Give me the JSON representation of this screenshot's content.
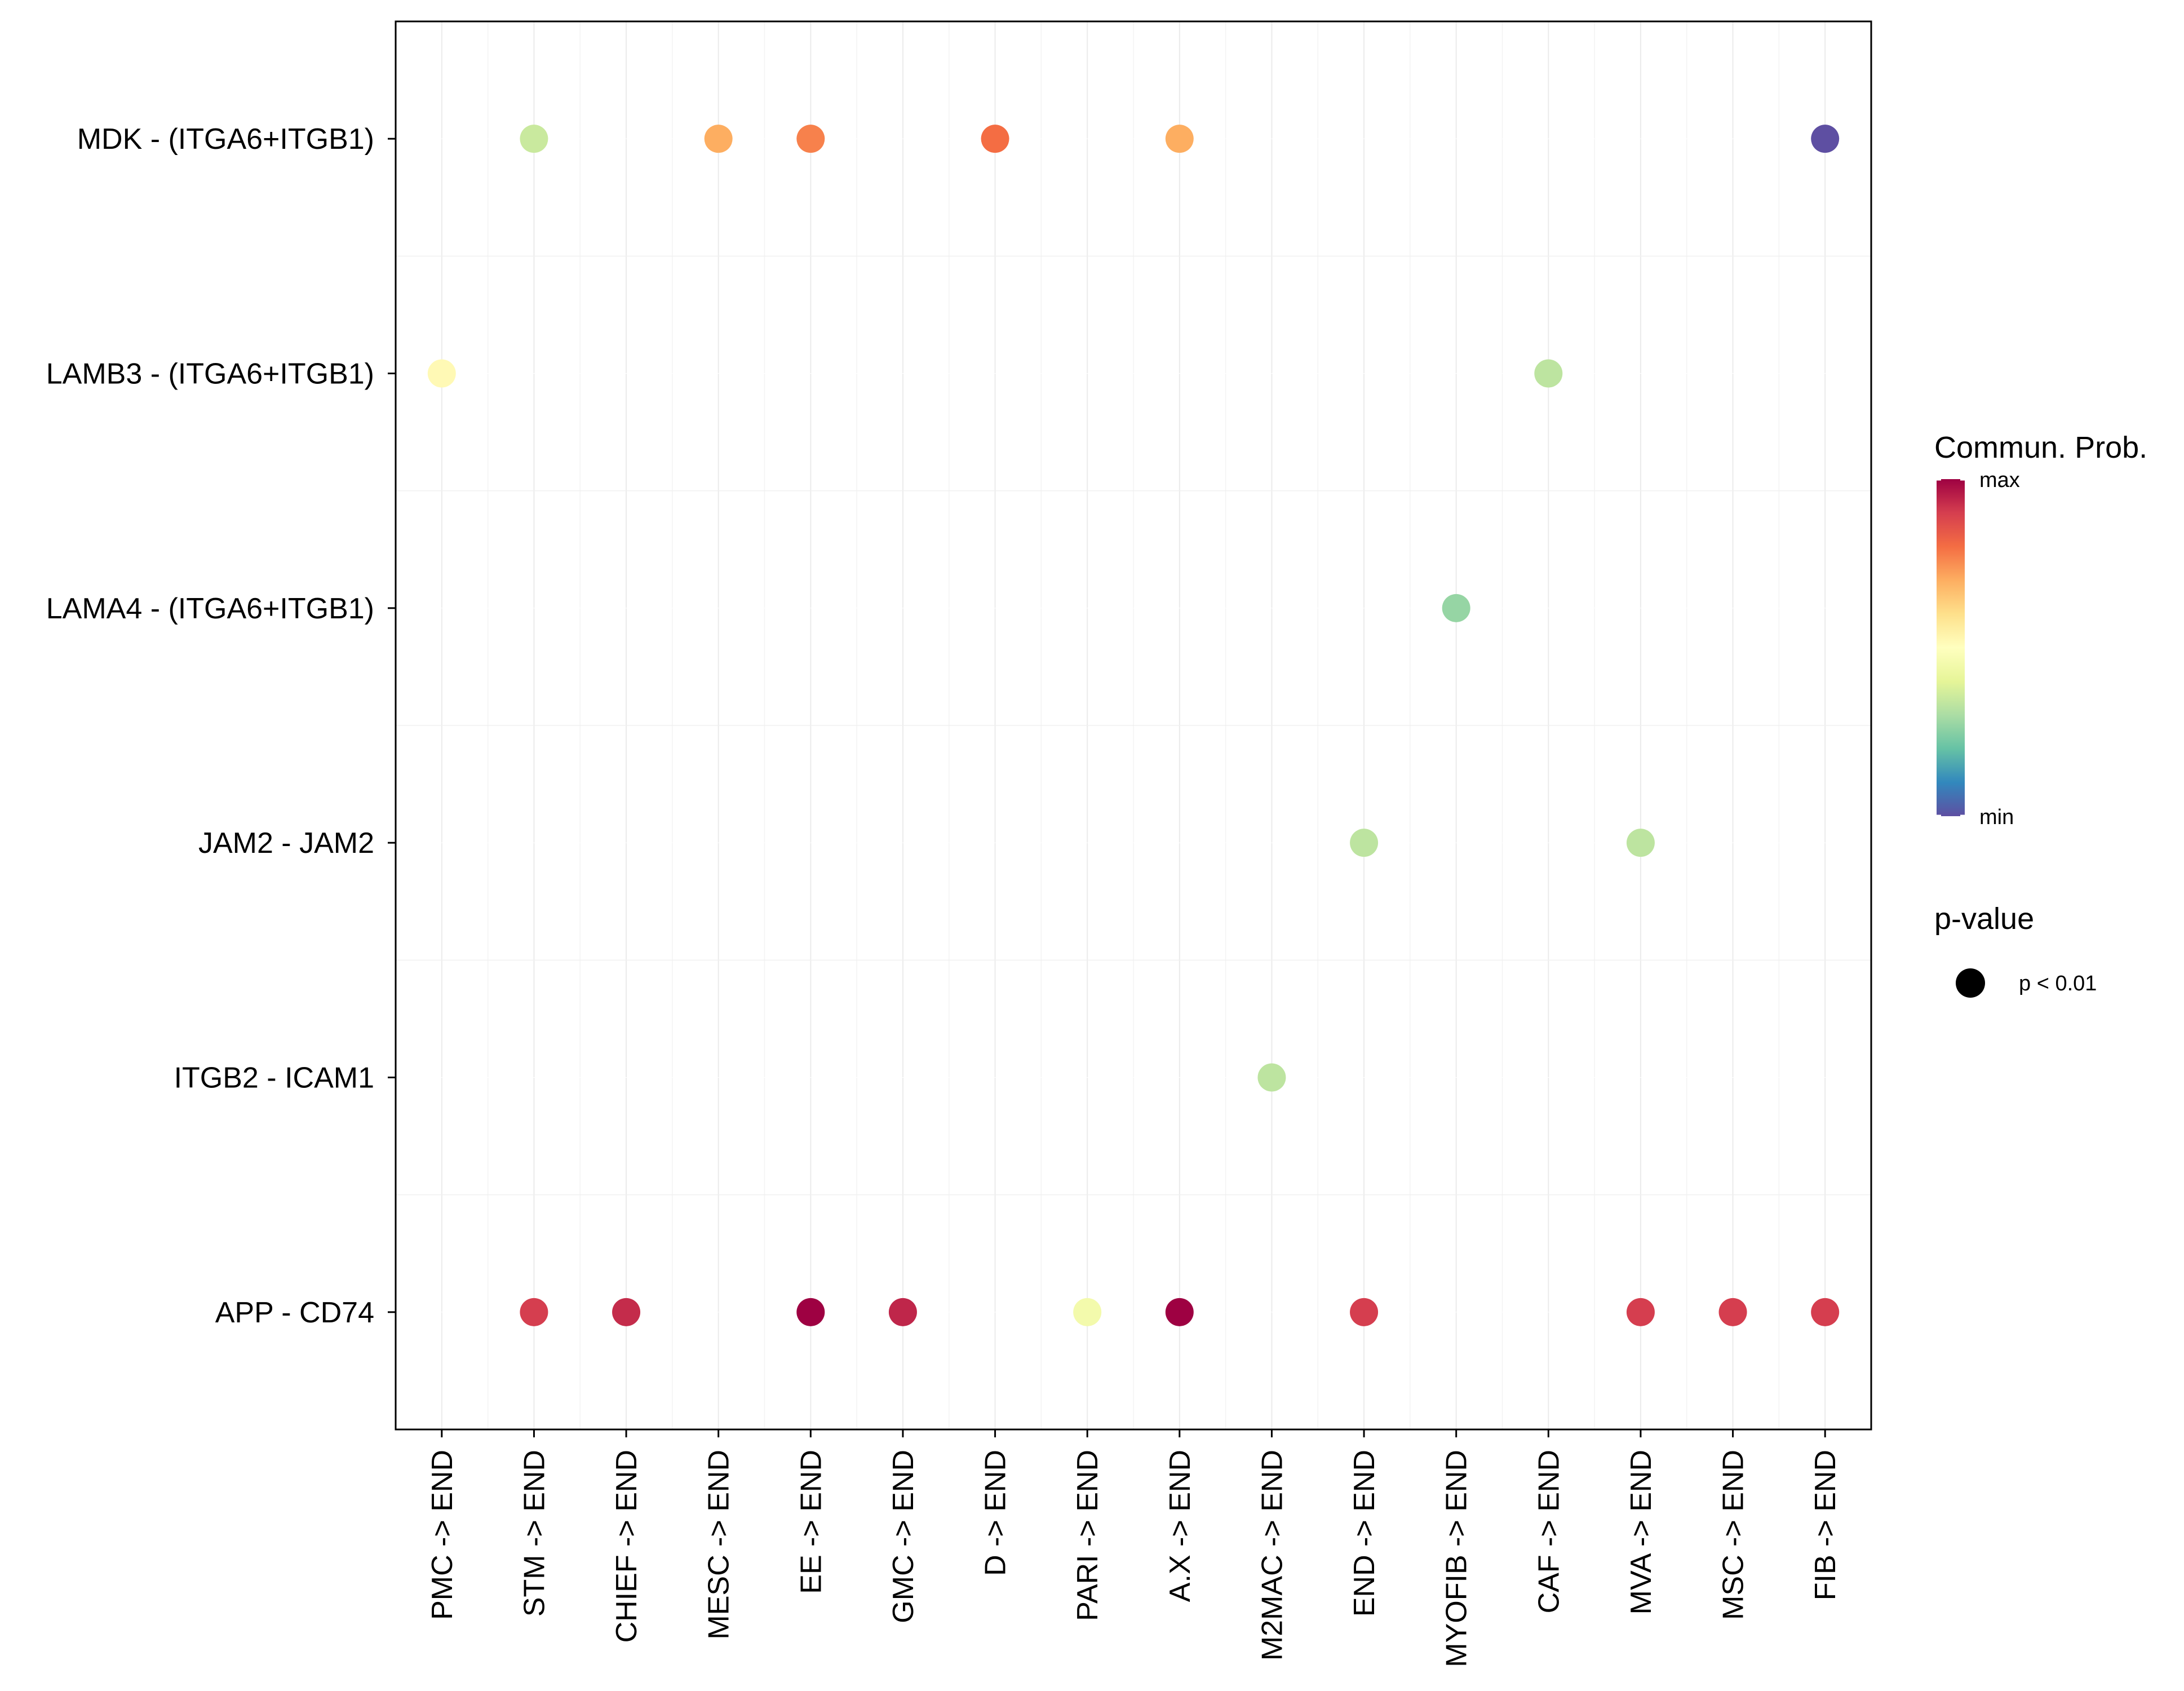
{
  "chart_data": {
    "type": "dot",
    "title": "",
    "xlabel": "",
    "ylabel": "",
    "x_categories": [
      "PMC -> END",
      "STM -> END",
      "CHIEF -> END",
      "MESC -> END",
      "EE -> END",
      "GMC -> END",
      "D -> END",
      "PARI -> END",
      "A.X -> END",
      "M2MAC -> END",
      "END -> END",
      "MYOFIB -> END",
      "CAF -> END",
      "MVA -> END",
      "MSC -> END",
      "FIB -> END"
    ],
    "y_categories": [
      "MDK - (ITGA6+ITGB1)",
      "LAMB3 - (ITGA6+ITGB1)",
      "LAMA4 - (ITGA6+ITGB1)",
      "JAM2 - JAM2",
      "ITGB2 - ICAM1",
      "APP - CD74"
    ],
    "prob_range": [
      0,
      1
    ],
    "points": [
      {
        "y": "MDK - (ITGA6+ITGB1)",
        "x": "STM -> END",
        "prob": 0.35
      },
      {
        "y": "MDK - (ITGA6+ITGB1)",
        "x": "MESC -> END",
        "prob": 0.7
      },
      {
        "y": "MDK - (ITGA6+ITGB1)",
        "x": "EE -> END",
        "prob": 0.77
      },
      {
        "y": "MDK - (ITGA6+ITGB1)",
        "x": "D -> END",
        "prob": 0.8
      },
      {
        "y": "MDK - (ITGA6+ITGB1)",
        "x": "A.X -> END",
        "prob": 0.7
      },
      {
        "y": "MDK - (ITGA6+ITGB1)",
        "x": "FIB -> END",
        "prob": 0.0
      },
      {
        "y": "LAMB3 - (ITGA6+ITGB1)",
        "x": "PMC -> END",
        "prob": 0.52
      },
      {
        "y": "LAMB3 - (ITGA6+ITGB1)",
        "x": "CAF -> END",
        "prob": 0.33
      },
      {
        "y": "LAMA4 - (ITGA6+ITGB1)",
        "x": "MYOFIB -> END",
        "prob": 0.27
      },
      {
        "y": "JAM2 - JAM2",
        "x": "END -> END",
        "prob": 0.33
      },
      {
        "y": "JAM2 - JAM2",
        "x": "MVA -> END",
        "prob": 0.33
      },
      {
        "y": "ITGB2 - ICAM1",
        "x": "M2MAC -> END",
        "prob": 0.33
      },
      {
        "y": "APP - CD74",
        "x": "STM -> END",
        "prob": 0.9
      },
      {
        "y": "APP - CD74",
        "x": "CHIEF -> END",
        "prob": 0.93
      },
      {
        "y": "APP - CD74",
        "x": "EE -> END",
        "prob": 1.0
      },
      {
        "y": "APP - CD74",
        "x": "GMC -> END",
        "prob": 0.94
      },
      {
        "y": "APP - CD74",
        "x": "PARI -> END",
        "prob": 0.45
      },
      {
        "y": "APP - CD74",
        "x": "A.X -> END",
        "prob": 1.0
      },
      {
        "y": "APP - CD74",
        "x": "END -> END",
        "prob": 0.9
      },
      {
        "y": "APP - CD74",
        "x": "MVA -> END",
        "prob": 0.9
      },
      {
        "y": "APP - CD74",
        "x": "MSC -> END",
        "prob": 0.9
      },
      {
        "y": "APP - CD74",
        "x": "FIB -> END",
        "prob": 0.9
      }
    ],
    "colorbar": {
      "title": "Commun. Prob.",
      "max_label": "max",
      "min_label": "min",
      "colors": [
        "#9E0142",
        "#D53E4F",
        "#F46D43",
        "#FDAE61",
        "#FEE08B",
        "#FFFFBF",
        "#E6F598",
        "#ABDDA4",
        "#66C2A5",
        "#3288BD",
        "#5E4FA2"
      ]
    },
    "size_legend": {
      "title": "p-value",
      "label": "p < 0.01"
    },
    "grid": true,
    "legend_position": "right"
  }
}
